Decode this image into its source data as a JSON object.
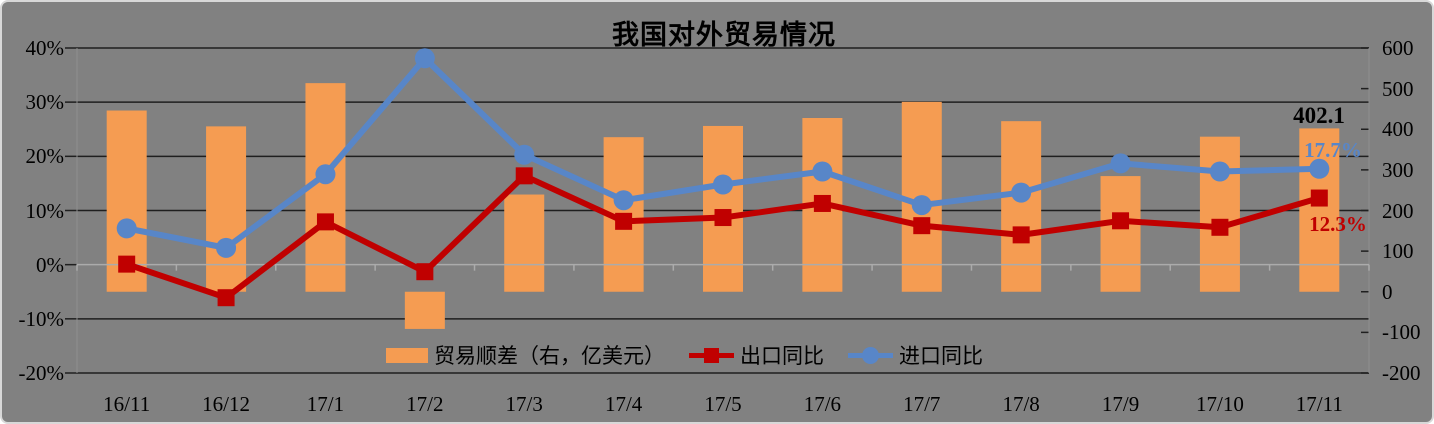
{
  "title": "我国对外贸易情况",
  "legend": [
    {
      "label": "贸易顺差（右，亿美元）",
      "type": "bar",
      "marker": "rect",
      "color": "#F59C52"
    },
    {
      "label": "出口同比",
      "type": "line",
      "marker": "square",
      "color": "#C00000"
    },
    {
      "label": "进口同比",
      "type": "line",
      "marker": "circle",
      "color": "#5886C8"
    }
  ],
  "annotations": [
    {
      "text": "402.1",
      "color": "#000000",
      "series": "贸易顺差（右，亿美元）",
      "category": "17/11"
    },
    {
      "text": "17.7%",
      "color": "#5886C8",
      "series": "进口同比",
      "category": "17/11"
    },
    {
      "text": "12.3%",
      "color": "#C00000",
      "series": "出口同比",
      "category": "17/11"
    }
  ],
  "chart_data": {
    "type": "combo",
    "title": "我国对外贸易情况",
    "categories": [
      "16/11",
      "16/12",
      "17/1",
      "17/2",
      "17/3",
      "17/4",
      "17/5",
      "17/6",
      "17/7",
      "17/8",
      "17/9",
      "17/10",
      "17/11"
    ],
    "series": [
      {
        "name": "贸易顺差（右，亿美元）",
        "type": "bar",
        "axis": "right",
        "unit": "亿美元",
        "color": "#F59C52",
        "values": [
          446.1,
          407.1,
          513.5,
          -91.5,
          239.3,
          380.5,
          408.1,
          427.7,
          467.4,
          419.9,
          284.7,
          381.7,
          402.1
        ]
      },
      {
        "name": "出口同比",
        "type": "line",
        "axis": "left",
        "unit": "%",
        "marker": "square",
        "color": "#C00000",
        "values": [
          0.1,
          -6.1,
          7.9,
          -1.3,
          16.4,
          8.0,
          8.7,
          11.3,
          7.2,
          5.5,
          8.1,
          6.9,
          12.3
        ]
      },
      {
        "name": "进口同比",
        "type": "line",
        "axis": "left",
        "unit": "%",
        "marker": "circle",
        "color": "#5886C8",
        "values": [
          6.7,
          3.1,
          16.7,
          38.1,
          20.3,
          11.9,
          14.8,
          17.2,
          11.0,
          13.3,
          18.7,
          17.2,
          17.7
        ]
      }
    ],
    "left_axis": {
      "min": -20,
      "max": 40,
      "step": 10,
      "suffix": "%",
      "ticks": [
        "40%",
        "30%",
        "20%",
        "10%",
        "0%",
        "-10%",
        "-20%"
      ]
    },
    "right_axis": {
      "min": -200,
      "max": 600,
      "step": 100,
      "ticks": [
        "600",
        "500",
        "400",
        "300",
        "200",
        "100",
        "0",
        "-100",
        "-200"
      ]
    },
    "grid": true,
    "legend_position": "bottom-inside",
    "colors": {
      "background": "#818181",
      "gridline": "#1f1f1f",
      "axis_line": "#8e8e8e",
      "zero_axis": "#ababab",
      "text": "#000000"
    }
  }
}
